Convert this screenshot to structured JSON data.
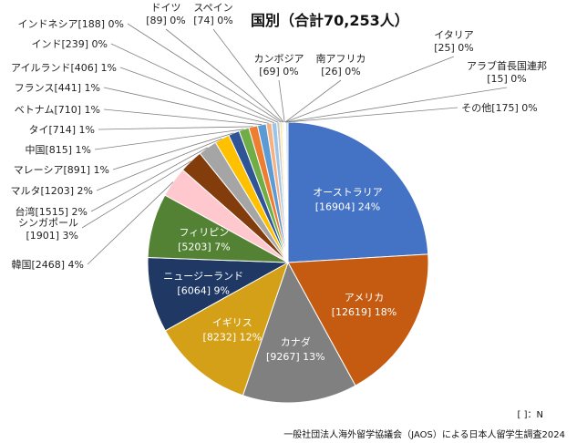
{
  "chart_data": {
    "type": "pie",
    "title": "国別",
    "title_total": "（合計70,253人）",
    "note": "[ ]：N",
    "source": "一般社団法人海外留学協議会（JAOS）による日本人留学生調査2024",
    "slices": [
      {
        "label": "オーストラリア",
        "value": 16904,
        "pct": "24%",
        "color": "#4472c4"
      },
      {
        "label": "アメリカ",
        "value": 12619,
        "pct": "18%",
        "color": "#c55a11"
      },
      {
        "label": "カナダ",
        "value": 9267,
        "pct": "13%",
        "color": "#808080"
      },
      {
        "label": "イギリス",
        "value": 8232,
        "pct": "12%",
        "color": "#d4a017"
      },
      {
        "label": "ニュージーランド",
        "value": 6064,
        "pct": "9%",
        "color": "#1f3864"
      },
      {
        "label": "フィリピン",
        "value": 5203,
        "pct": "7%",
        "color": "#548235"
      },
      {
        "label": "韓国",
        "value": 2468,
        "pct": "4%",
        "color": "#ffc7ce"
      },
      {
        "label": "シンガポール",
        "value": 1901,
        "pct": "3%",
        "color": "#833c0b"
      },
      {
        "label": "台湾",
        "value": 1515,
        "pct": "2%",
        "color": "#a5a5a5"
      },
      {
        "label": "マルタ",
        "value": 1203,
        "pct": "2%",
        "color": "#ffc000"
      },
      {
        "label": "マレーシア",
        "value": 891,
        "pct": "1%",
        "color": "#2f5597"
      },
      {
        "label": "中国",
        "value": 815,
        "pct": "1%",
        "color": "#70ad47"
      },
      {
        "label": "タイ",
        "value": 714,
        "pct": "1%",
        "color": "#ed7d31"
      },
      {
        "label": "ベトナム",
        "value": 710,
        "pct": "1%",
        "color": "#5b9bd5"
      },
      {
        "label": "フランス",
        "value": 441,
        "pct": "1%",
        "color": "#f4b183"
      },
      {
        "label": "アイルランド",
        "value": 406,
        "pct": "1%",
        "color": "#9dc3e6"
      },
      {
        "label": "インド",
        "value": 239,
        "pct": "0%",
        "color": "#c9c9c9"
      },
      {
        "label": "インドネシア",
        "value": 188,
        "pct": "0%",
        "color": "#ffe699"
      },
      {
        "label": "ドイツ",
        "value": 89,
        "pct": "0%",
        "color": "#8faadc"
      },
      {
        "label": "スペイン",
        "value": 74,
        "pct": "0%",
        "color": "#a9d18e"
      },
      {
        "label": "カンボジア",
        "value": 69,
        "pct": "0%",
        "color": "#7f6000"
      },
      {
        "label": "南アフリカ",
        "value": 26,
        "pct": "0%",
        "color": "#c00000"
      },
      {
        "label": "イタリア",
        "value": 25,
        "pct": "0%",
        "color": "#375623"
      },
      {
        "label": "アラブ首長国連邦",
        "value": 15,
        "pct": "0%",
        "color": "#7030a0"
      },
      {
        "label": "その他",
        "value": 175,
        "pct": "0%",
        "color": "#bdd7ee"
      }
    ]
  }
}
